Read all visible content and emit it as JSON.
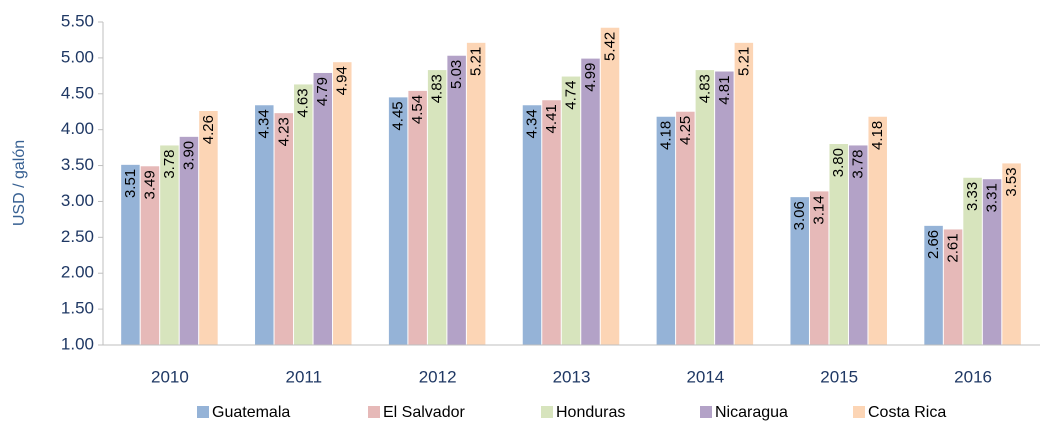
{
  "chart_data": {
    "type": "bar",
    "y_label": "USD / galón",
    "categories": [
      "2010",
      "2011",
      "2012",
      "2013",
      "2014",
      "2015",
      "2016"
    ],
    "series": [
      {
        "name": "Guatemala",
        "color": "#95b3d7",
        "values": [
          3.51,
          4.34,
          4.45,
          4.34,
          4.18,
          3.06,
          2.66
        ],
        "value_labels": [
          "3.51",
          "4.34",
          "4.45",
          "4.34",
          "4.18",
          "3.06",
          "2.66"
        ]
      },
      {
        "name": "El Salvador",
        "color": "#e6b9b8",
        "values": [
          3.49,
          4.23,
          4.54,
          4.41,
          4.25,
          3.14,
          2.61
        ],
        "value_labels": [
          "3.49",
          "4.23",
          "4.54",
          "4.41",
          "4.25",
          "3.14",
          "2.61"
        ]
      },
      {
        "name": "Honduras",
        "color": "#d7e4bd",
        "values": [
          3.78,
          4.63,
          4.83,
          4.74,
          4.83,
          3.8,
          3.33
        ],
        "value_labels": [
          "3.78",
          "4.63",
          "4.83",
          "4.74",
          "4.83",
          "3.80",
          "3.33"
        ]
      },
      {
        "name": "Nicaragua",
        "color": "#b3a2c7",
        "values": [
          3.9,
          4.79,
          5.03,
          4.99,
          4.81,
          3.78,
          3.31
        ],
        "value_labels": [
          "3.90",
          "4.79",
          "5.03",
          "4.99",
          "4.81",
          "3.78",
          "3.31"
        ]
      },
      {
        "name": "Costa Rica",
        "color": "#fcd5b5",
        "values": [
          4.26,
          4.94,
          5.21,
          5.42,
          5.21,
          4.18,
          3.53
        ],
        "value_labels": [
          "4.26",
          "4.94",
          "5.21",
          "5.42",
          "5.21",
          "4.18",
          "3.53"
        ]
      }
    ],
    "ylim": [
      1,
      5.5
    ],
    "yticks": [
      {
        "value": 1,
        "label": "1.00"
      },
      {
        "value": 1.5,
        "label": "1.50"
      },
      {
        "value": 2,
        "label": "2.00"
      },
      {
        "value": 2.5,
        "label": "2.50"
      },
      {
        "value": 3,
        "label": "3.00"
      },
      {
        "value": 3.5,
        "label": "3.50"
      },
      {
        "value": 4,
        "label": "4.00"
      },
      {
        "value": 4.5,
        "label": "4.50"
      },
      {
        "value": 5,
        "label": "5.00"
      },
      {
        "value": 5.5,
        "label": "5.50"
      }
    ],
    "legend": "bottom"
  }
}
